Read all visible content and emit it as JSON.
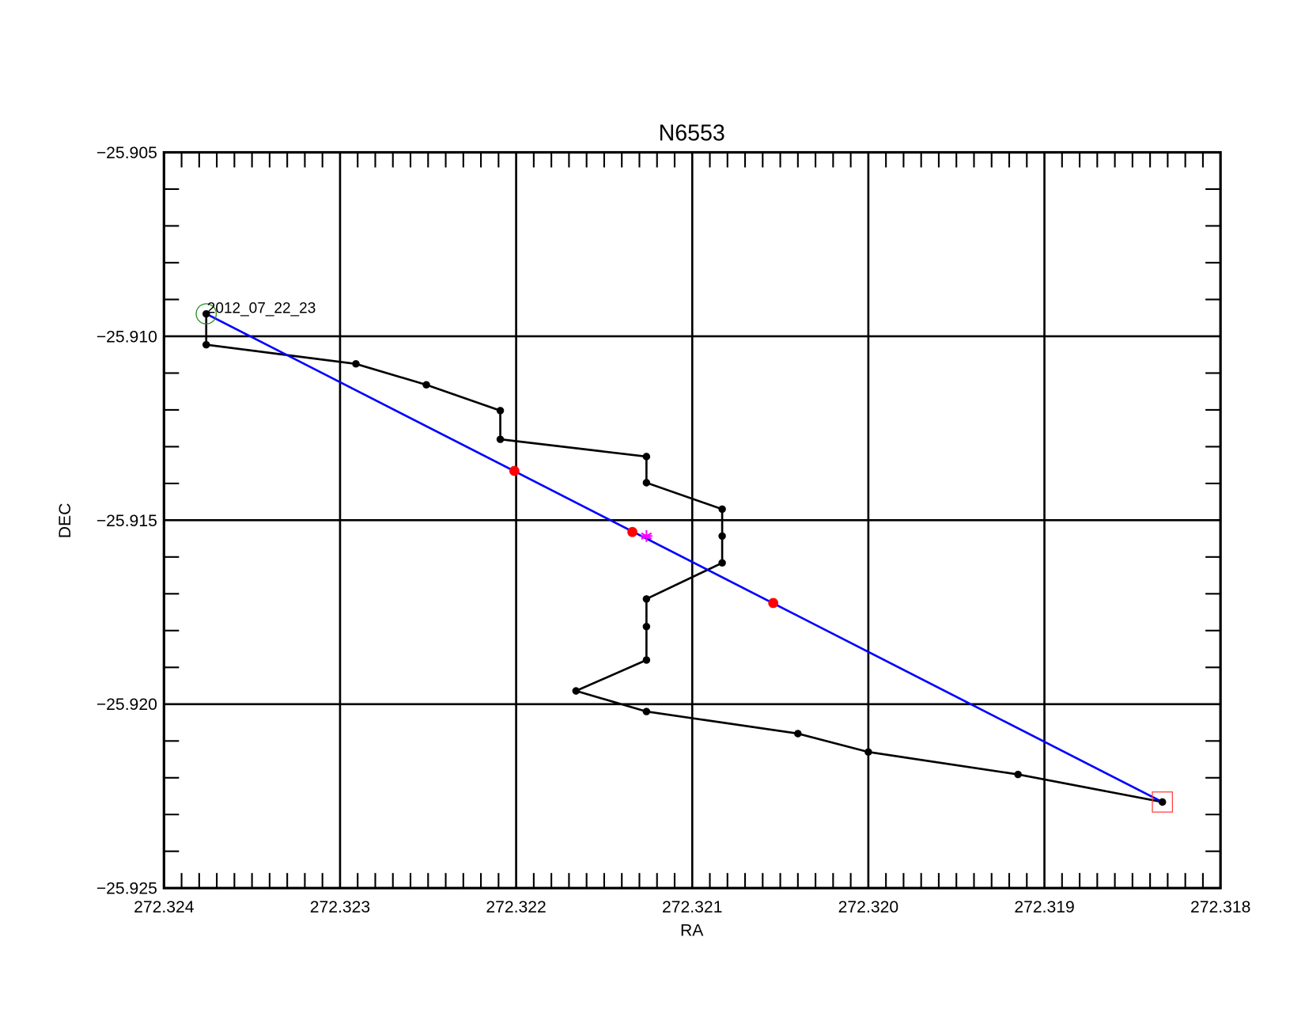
{
  "chart_data": {
    "type": "line",
    "title": "N6553",
    "x_label": "RA",
    "y_label": "DEC",
    "xlim": [
      272.324,
      272.318
    ],
    "xticks": [
      272.324,
      272.323,
      272.322,
      272.321,
      {
        "value": 272.32,
        "label": "272.320"
      },
      272.319,
      272.318
    ],
    "ylim": [
      -25.925,
      -25.905
    ],
    "yticks": [
      {
        "value": -25.925,
        "label": "−25.925"
      },
      {
        "value": -25.92,
        "label": "−25.920"
      },
      {
        "value": -25.915,
        "label": "−25.915"
      },
      {
        "value": -25.91,
        "label": "−25.910"
      },
      {
        "value": -25.905,
        "label": "−25.905"
      }
    ],
    "grid": true,
    "series": [
      {
        "color": "#000000",
        "line": true,
        "marker": "dot",
        "x": [
          272.32376,
          272.32376,
          272.32291,
          272.32251,
          272.32209,
          272.32209,
          272.32126,
          272.32126,
          272.32083,
          272.32083,
          272.32083,
          272.32126,
          272.32126,
          272.32126,
          272.32166,
          272.32126,
          272.3204,
          272.32,
          272.31915,
          272.31833
        ],
        "values": [
          -25.90939,
          -25.91023,
          -25.91075,
          -25.91132,
          -25.91202,
          -25.9128,
          -25.91327,
          -25.91398,
          -25.9147,
          -25.91543,
          -25.91616,
          -25.91714,
          -25.91789,
          -25.9188,
          -25.91964,
          -25.9202,
          -25.9208,
          -25.9213,
          -25.92191,
          -25.92266
        ]
      },
      {
        "color": "#0000ff",
        "line": true,
        "marker": "none",
        "x": [
          272.32376,
          272.31833
        ],
        "values": [
          -25.90939,
          -25.92266
        ]
      },
      {
        "color": "#ff0000",
        "line": false,
        "marker": "dot-large",
        "x": [
          272.32201,
          272.32134,
          272.32054
        ],
        "values": [
          -25.91366,
          -25.91532,
          -25.91725
        ]
      },
      {
        "color": "#ff00ff",
        "line": false,
        "marker": "asterisk",
        "x": [
          272.32126
        ],
        "values": [
          -25.91543
        ]
      },
      {
        "color": "#228b22",
        "line": false,
        "marker": "circle-open",
        "x": [
          272.32376
        ],
        "values": [
          -25.90939
        ]
      },
      {
        "color": "#ff4040",
        "line": false,
        "marker": "square-open",
        "x": [
          272.31833
        ],
        "values": [
          -25.92266
        ]
      }
    ],
    "annotation": {
      "text": "2012_07_22_23",
      "x": 272.32376,
      "y": -25.90939
    }
  }
}
